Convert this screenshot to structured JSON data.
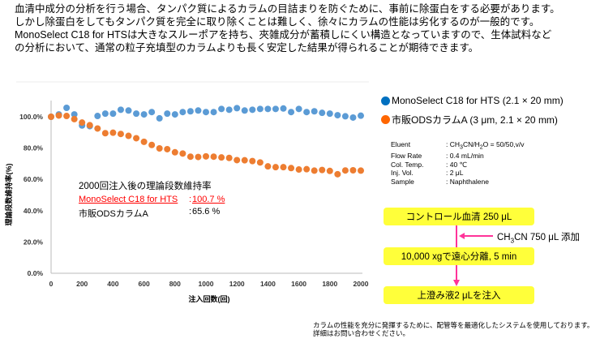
{
  "intro": [
    "血清中成分の分析を行う場合、タンパク質によるカラムの目詰まりを防ぐために、事前に除蛋白をする必要があります。",
    "しかし除蛋白をしてもタンパク質を完全に取り除くことは難しく、徐々にカラムの性能は劣化するのが一般的です。",
    "MonoSelect C18 for HTSは大きなスルーポアを持ち、夾雑成分が蓄積しにくい構造となっていますので、生体試料など",
    "の分析において、通常の粒子充填型のカラムよりも長く安定した結果が得られることが期待できます。"
  ],
  "chart_data": {
    "type": "scatter",
    "xlabel": "注入回数(回)",
    "ylabel": "理論段数維持率(%)",
    "xlim": [
      0,
      2000
    ],
    "ylim": [
      0,
      100
    ],
    "xticks": [
      "0",
      "200",
      "400",
      "600",
      "800",
      "1000",
      "1200",
      "1400",
      "1600",
      "1800",
      "2000"
    ],
    "yticks": [
      "0.0%",
      "20.0%",
      "40.0%",
      "60.0%",
      "80.0%",
      "100.0%"
    ],
    "x": [
      0,
      50,
      100,
      150,
      200,
      250,
      300,
      350,
      400,
      450,
      500,
      550,
      600,
      650,
      700,
      750,
      800,
      850,
      900,
      950,
      1000,
      1050,
      1100,
      1150,
      1200,
      1250,
      1300,
      1350,
      1400,
      1450,
      1500,
      1550,
      1600,
      1650,
      1700,
      1750,
      1800,
      1850,
      1900,
      1950,
      2000
    ],
    "series": [
      {
        "name": "MonoSelect C18 for HTS (2.1 × 20 mm)",
        "color": "#5b9bd5",
        "values": [
          100,
          101.5,
          105.7,
          101.5,
          94.4,
          94,
          100.5,
          102,
          102,
          104.5,
          104,
          102,
          101.5,
          103,
          99,
          102,
          101.5,
          103,
          103.5,
          104,
          103,
          103,
          105,
          104.5,
          105.5,
          104,
          104.5,
          105,
          105,
          105,
          105.3,
          103,
          105,
          103,
          103.5,
          102.5,
          102,
          101,
          100.3,
          99.5,
          100.7
        ]
      },
      {
        "name": "市販ODSカラムA (3 μm, 2.1 × 20 mm)",
        "color": "#ed7d31",
        "values": [
          100,
          100.8,
          100.5,
          98.5,
          96.3,
          94.6,
          92.5,
          89.5,
          89.8,
          89,
          87.8,
          86.3,
          84,
          82,
          79.8,
          79.3,
          77.3,
          76.5,
          74.5,
          74.3,
          74.7,
          74.5,
          74,
          73.7,
          72.3,
          72.2,
          71.7,
          70.8,
          68.3,
          67.8,
          67.8,
          67.2,
          66.3,
          66.5,
          65.6,
          66,
          65.4,
          63.3,
          65.7,
          65.8,
          65.6
        ]
      }
    ],
    "annotation": {
      "title": "2000回注入後の理論段数維持率",
      "rows": [
        {
          "label": "MonoSelect C18 for HTS",
          "value": "100.7 %",
          "color": "#ff0000"
        },
        {
          "label": "市販ODSカラムA",
          "value": "65.6 %",
          "color": "#000000"
        }
      ]
    }
  },
  "legend": [
    "MonoSelect C18 for HTS (2.1 × 20 mm)",
    "市販ODSカラムA (3 μm, 2.1 × 20 mm)"
  ],
  "conditions": [
    {
      "key": "Eluent",
      "pre": ": CH",
      "s1": "3",
      "mid": "CN/H",
      "s2": "2",
      "post": "O = 50/50,v/v"
    },
    {
      "key": "Flow Rate",
      "value": ": 0.4 mL/min"
    },
    {
      "key": "Col. Temp.",
      "value": ": 40 ℃"
    },
    {
      "key": "Inj. Vol.",
      "value": ": 2 μL"
    },
    {
      "key": "Sample",
      "value": ": Naphthalene"
    }
  ],
  "flow": {
    "step1": "コントロール血清 250 μL",
    "add_pre": "CH",
    "add_sub": "3",
    "add_post": "CN 750 μL 添加",
    "step2": "10,000 xgで遠心分離, 5 min",
    "step3": "上澄み液2 μLを注入",
    "arrow_color": "#ff3399",
    "box_color": "#ffff3a"
  },
  "footnote": [
    "カラムの性能を充分に発揮するために、配管等を最適化したシステムを使用しております。",
    "詳細はお問い合わせください。"
  ]
}
